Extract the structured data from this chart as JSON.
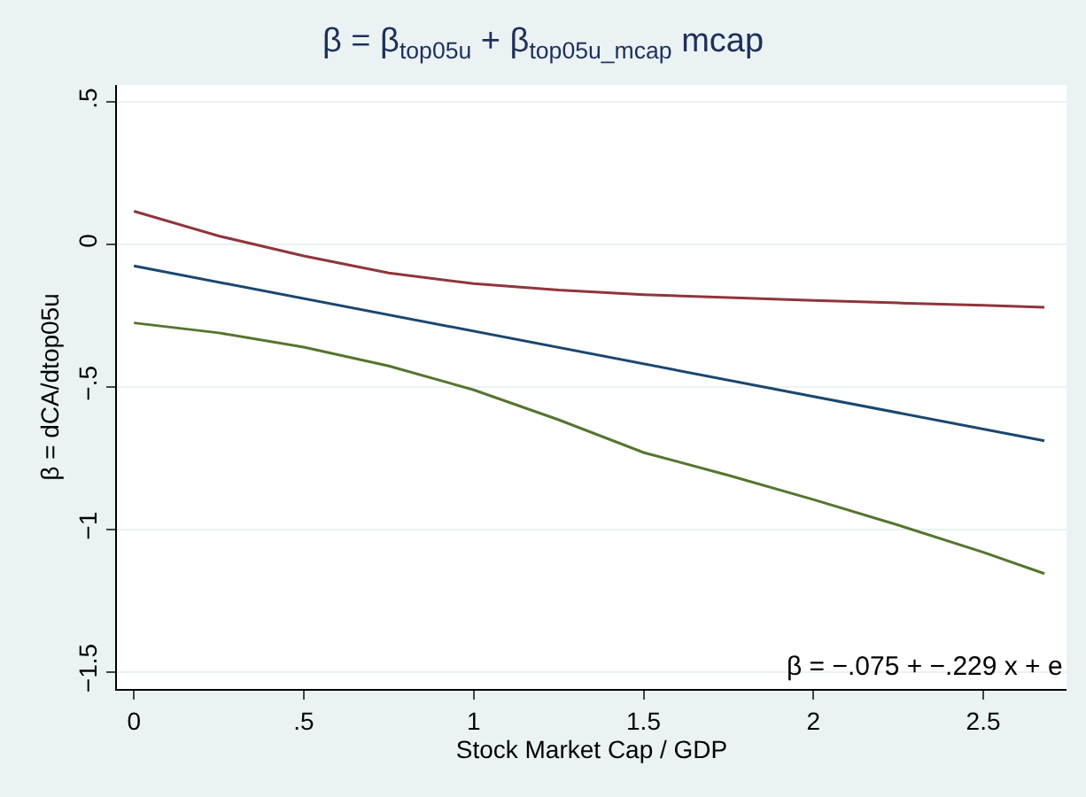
{
  "chart_data": {
    "type": "line",
    "title": "β = β$_{top05u}$ + β$_{top05u_mcap}$ mcap",
    "xlabel": "Stock Market Cap / GDP",
    "ylabel": "β = dCA/dtop05u",
    "annotations": [
      "β = −.075 + −.229 x + e"
    ],
    "series": [
      {
        "color": "#90353b",
        "x": [
          0,
          0.25,
          0.5,
          0.75,
          1,
          1.25,
          1.5,
          1.75,
          2,
          2.25,
          2.5,
          2.68
        ],
        "values": [
          0.117,
          0.03,
          -0.04,
          -0.1,
          -0.137,
          -0.16,
          -0.176,
          -0.186,
          -0.196,
          -0.205,
          -0.213,
          -0.22
        ]
      },
      {
        "color": "#1a476f",
        "x": [
          0,
          2.68
        ],
        "values": [
          -0.075,
          -0.689
        ]
      },
      {
        "color": "#55752f",
        "x": [
          0,
          0.25,
          0.5,
          0.75,
          1,
          1.25,
          1.5,
          1.75,
          2,
          2.25,
          2.5,
          2.68
        ],
        "values": [
          -0.275,
          -0.31,
          -0.36,
          -0.426,
          -0.51,
          -0.615,
          -0.73,
          -0.81,
          -0.895,
          -0.985,
          -1.08,
          -1.155
        ]
      }
    ],
    "xlim": [
      -0.05,
      2.745
    ],
    "ylim": [
      -1.56,
      0.56
    ],
    "xticks": [
      0,
      {
        "value": 0.5,
        "label": ".5"
      },
      1,
      1.5,
      2,
      2.5
    ],
    "yticks": [
      {
        "value": -1.5,
        "label": "−1.5"
      },
      {
        "value": -1,
        "label": "−1"
      },
      {
        "value": -0.5,
        "label": "−.5"
      },
      0,
      {
        "value": 0.5,
        "label": ".5"
      }
    ],
    "grid": "y",
    "line_style": "solid"
  }
}
